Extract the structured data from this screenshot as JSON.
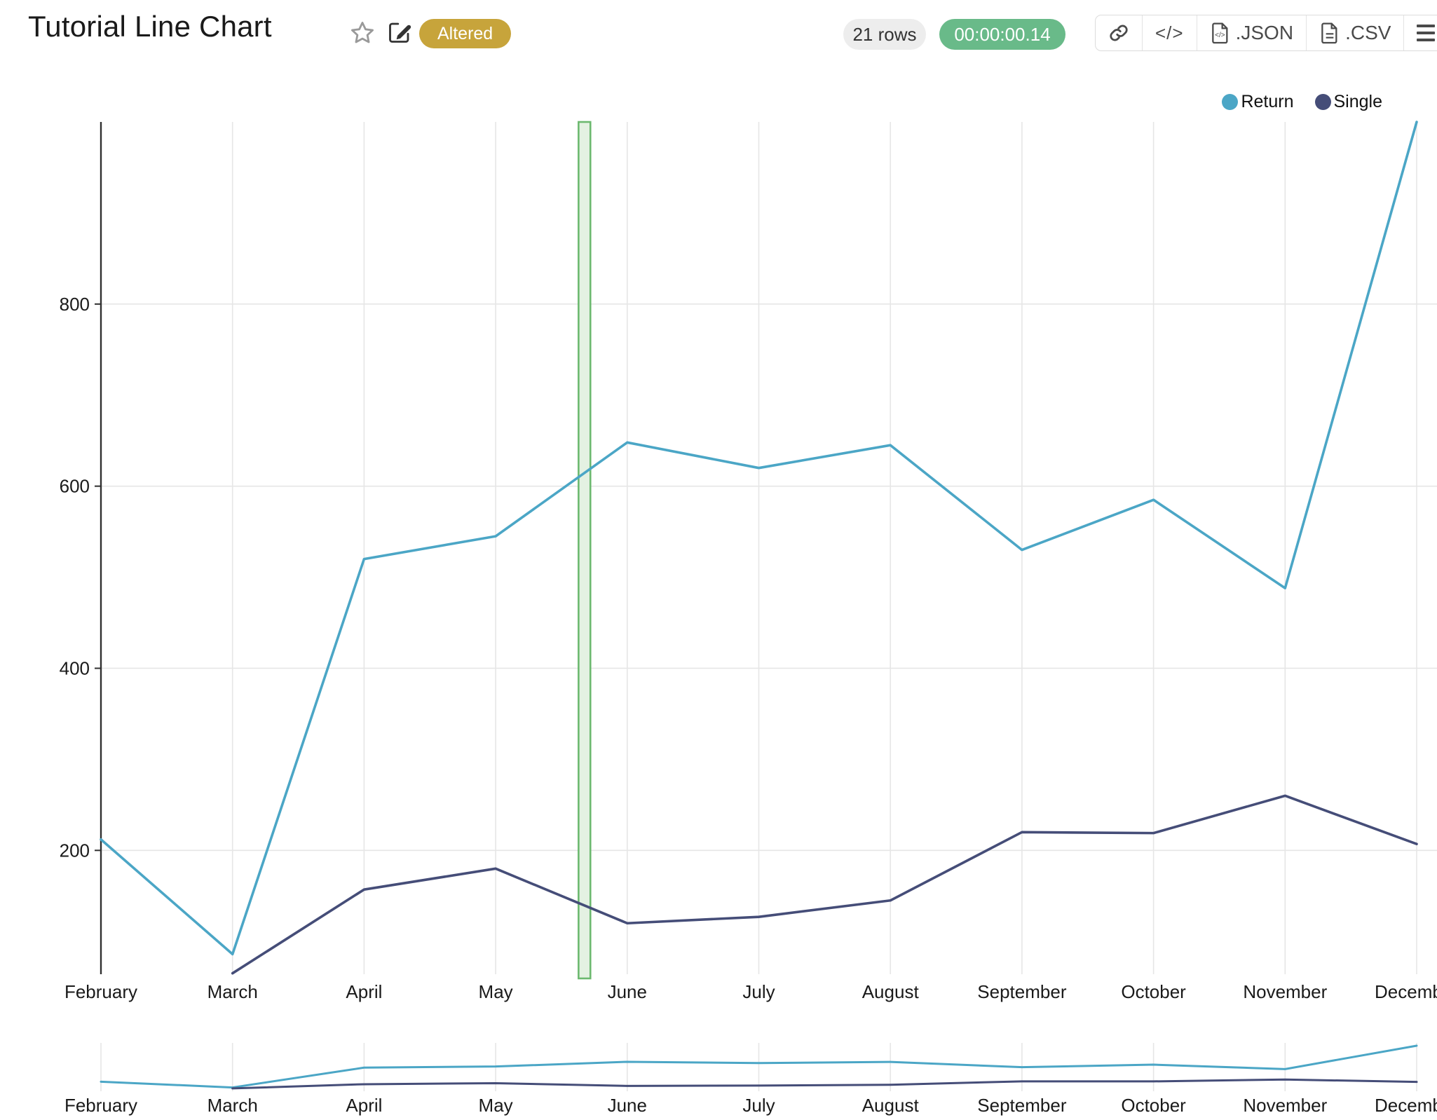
{
  "header": {
    "title": "Tutorial Line Chart",
    "badge_label": "Altered",
    "rows_count": "21 rows",
    "timer": "00:00:00.14",
    "code_button_label": "</>",
    "export_json_label": ".JSON",
    "export_csv_label": ".CSV"
  },
  "colors": {
    "badge_bg": "#c7a43b",
    "timer_bg": "#69ba89",
    "return_line": "#4ba6c6",
    "single_line": "#454d78",
    "band_fill": "#e4f1e2",
    "band_border": "#6cb96f",
    "grid_line": "#e6e6e6",
    "axis_line": "#303030",
    "tick_text": "#1a1a1a"
  },
  "chart_data": {
    "type": "line",
    "title": "Tutorial Line Chart",
    "categories": [
      "February",
      "March",
      "April",
      "May",
      "June",
      "July",
      "August",
      "September",
      "October",
      "November",
      "December"
    ],
    "series": [
      {
        "name": "Return",
        "color": "#4ba6c6",
        "values": [
          212,
          86,
          520,
          545,
          648,
          620,
          645,
          530,
          585,
          488,
          1000
        ]
      },
      {
        "name": "Single",
        "color": "#454d78",
        "values": [
          null,
          65,
          157,
          180,
          120,
          127,
          145,
          220,
          219,
          260,
          207
        ]
      }
    ],
    "yticks": [
      200,
      400,
      600,
      800
    ],
    "ylim": [
      64,
      1000
    ],
    "xlabel": "",
    "ylabel": "",
    "grid": true,
    "legend_position": "top-right",
    "highlight_band": {
      "from_index": 3.63,
      "to_index": 3.72
    },
    "minimap": true
  }
}
